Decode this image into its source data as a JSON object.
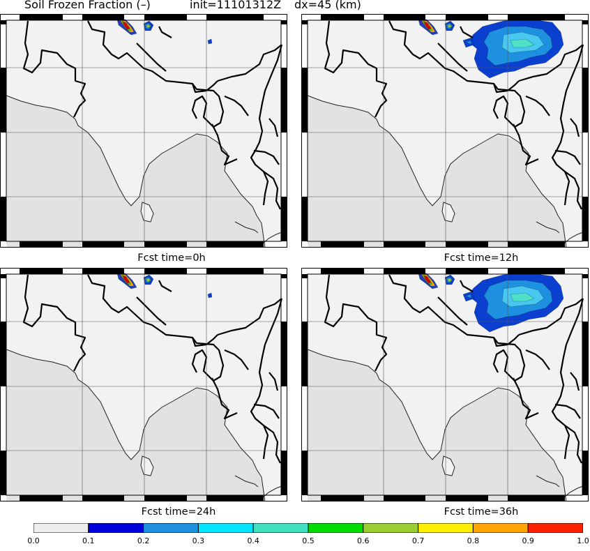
{
  "header": {
    "variable": "Soil Frozen Fraction (–)",
    "init": "init=11101312Z",
    "resolution": "dx=45 (km)"
  },
  "panels": [
    {
      "label": "Fcst time=0h",
      "snow_extent": "small"
    },
    {
      "label": "Fcst time=12h",
      "snow_extent": "large"
    },
    {
      "label": "Fcst time=24h",
      "snow_extent": "small"
    },
    {
      "label": "Fcst time=36h",
      "snow_extent": "large"
    }
  ],
  "colorbar": {
    "labels": [
      "0.0",
      "0.1",
      "0.2",
      "0.3",
      "0.4",
      "0.5",
      "0.6",
      "0.7",
      "0.8",
      "0.9",
      "1.0"
    ],
    "colors": [
      "#eeeeee",
      "#0000dd",
      "#1e90e0",
      "#00e5ff",
      "#40e0c0",
      "#00dd00",
      "#9acd32",
      "#ffee00",
      "#ffa500",
      "#ff2200"
    ]
  },
  "map_colors": {
    "land": "#f2f2f2",
    "sea": "#e2e2e2",
    "border": "#000000",
    "grid": "#555555"
  }
}
